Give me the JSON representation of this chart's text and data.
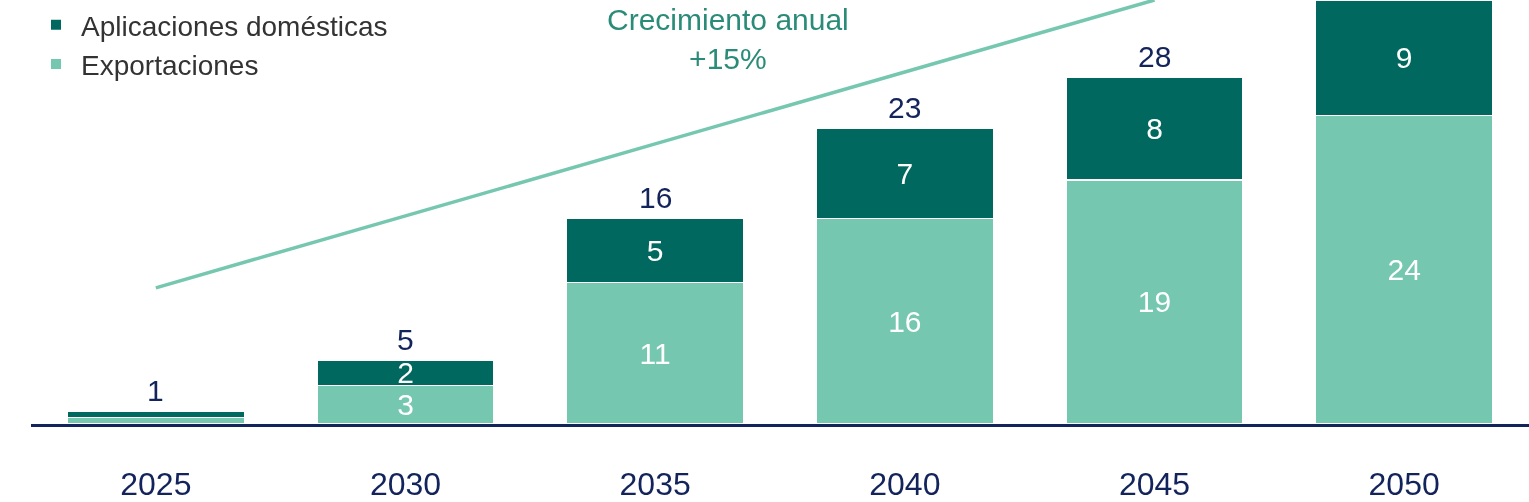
{
  "chart_data": {
    "type": "bar",
    "stacked": true,
    "categories": [
      "2025",
      "2030",
      "2035",
      "2040",
      "2045",
      "2050"
    ],
    "series": [
      {
        "name": "Exportaciones",
        "color": "#76c7b0",
        "values": [
          0.5,
          3,
          11,
          16,
          19,
          24
        ],
        "value_labels": [
          null,
          "3",
          "11",
          "16",
          "19",
          "24"
        ]
      },
      {
        "name": "Aplicaciones domésticas",
        "color": "#00685f",
        "values": [
          0.5,
          2,
          5,
          7,
          8,
          9
        ],
        "value_labels": [
          null,
          "2",
          "5",
          "7",
          "8",
          "9"
        ]
      },
      {
        "type": "line",
        "color": "#76c7b0",
        "values": [
          10.6,
          16.2,
          21.8,
          27.4,
          33,
          null
        ]
      }
    ],
    "totals": [
      "1",
      "5",
      "16",
      "23",
      "28",
      null
    ],
    "ylim": [
      0,
      33
    ],
    "tick_labels": "x",
    "legend": "top left",
    "annotations": [
      "Crecimiento anual\n+15%"
    ]
  }
}
